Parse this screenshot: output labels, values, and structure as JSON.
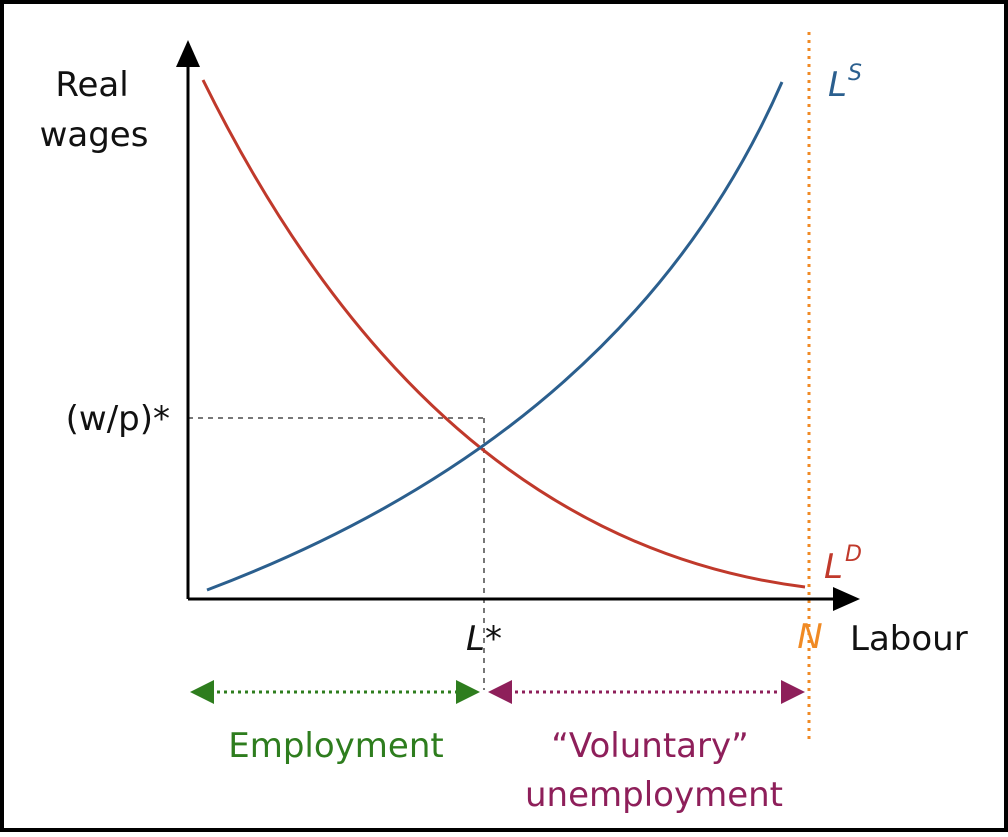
{
  "colors": {
    "supply": "#2b5f8e",
    "demand": "#c0392b",
    "labour_force": "#f08a24",
    "employment": "#2e7d1e",
    "unemployment": "#8e1f5a",
    "axis": "#000000",
    "guide": "#777777",
    "frame": "#000000"
  },
  "labels": {
    "y_axis_line1": "Real",
    "y_axis_line2": "wages",
    "x_axis": "Labour",
    "equilibrium_wage": "(w/p)*",
    "equilibrium_labour": "L*",
    "labour_force": "N",
    "supply_base": "L",
    "supply_sup": "S",
    "demand_base": "L",
    "demand_sup": "D",
    "employment": "Employment",
    "voluntary_line1": "“Voluntary”",
    "voluntary_line2": "unemployment"
  }
}
